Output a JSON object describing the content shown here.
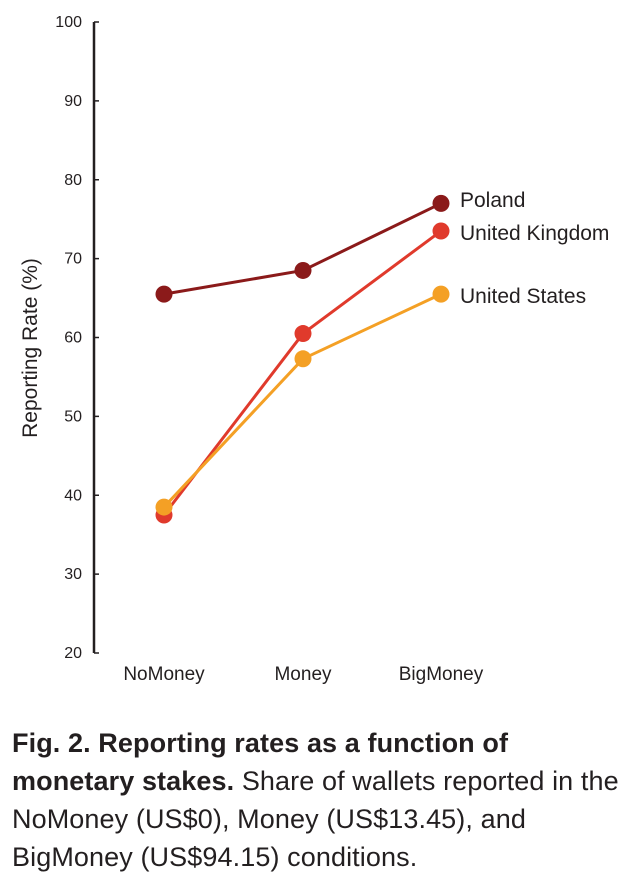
{
  "chart_data": {
    "type": "line",
    "categories": [
      "NoMoney",
      "Money",
      "BigMoney"
    ],
    "ylabel": "Reporting Rate (%)",
    "xlabel": "",
    "ylim": [
      20,
      100
    ],
    "yticks": [
      20,
      30,
      40,
      50,
      60,
      70,
      80,
      90,
      100
    ],
    "grid": false,
    "series": [
      {
        "name": "Poland",
        "color": "#8b1a1a",
        "values": [
          65.5,
          68.5,
          77.0
        ]
      },
      {
        "name": "United Kingdom",
        "color": "#e03a2c",
        "values": [
          37.5,
          60.5,
          73.5
        ]
      },
      {
        "name": "United States",
        "color": "#f4a025",
        "values": [
          38.5,
          57.3,
          65.5
        ]
      }
    ]
  },
  "caption": {
    "bold": "Fig. 2. Reporting rates as a function of monetary stakes.",
    "text": " Share of wallets reported in the NoMoney (US$0), Money (US$13.45), and BigMoney (US$94.15) conditions."
  }
}
